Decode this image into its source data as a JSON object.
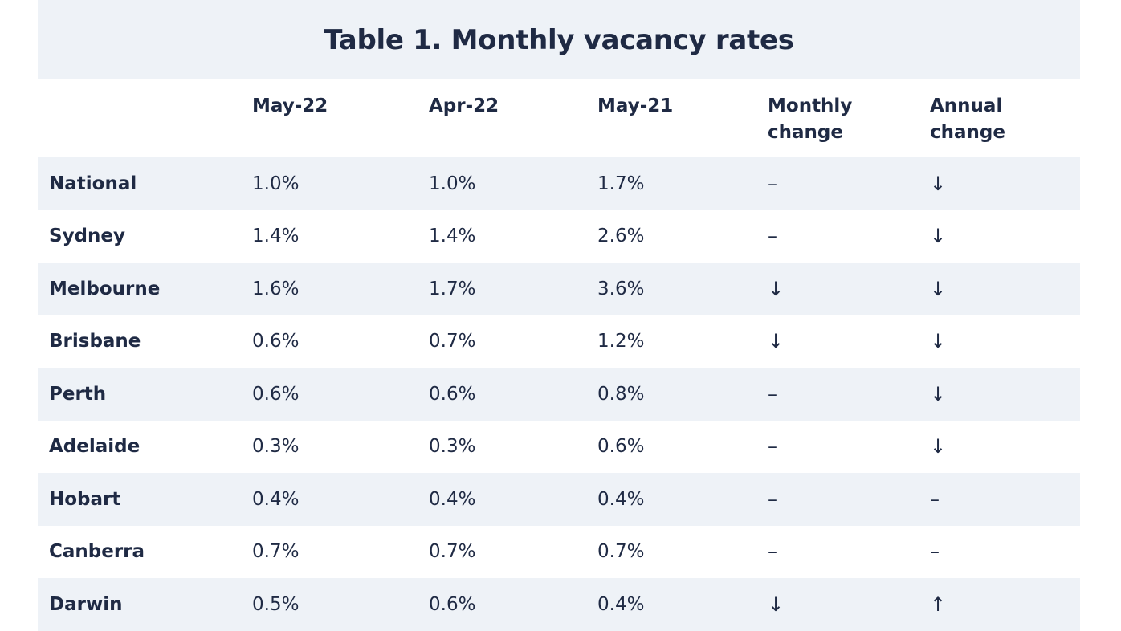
{
  "title": "Table 1. Monthly vacancy rates",
  "columns": [
    "",
    "May-22",
    "Apr-22",
    "May-21",
    "Monthly change",
    "Annual change"
  ],
  "rows": [
    [
      "National",
      "1.0%",
      "1.0%",
      "1.7%",
      "–",
      "↓"
    ],
    [
      "Sydney",
      "1.4%",
      "1.4%",
      "2.6%",
      "–",
      "↓"
    ],
    [
      "Melbourne",
      "1.6%",
      "1.7%",
      "3.6%",
      "↓",
      "↓"
    ],
    [
      "Brisbane",
      "0.6%",
      "0.7%",
      "1.2%",
      "↓",
      "↓"
    ],
    [
      "Perth",
      "0.6%",
      "0.6%",
      "0.8%",
      "–",
      "↓"
    ],
    [
      "Adelaide",
      "0.3%",
      "0.3%",
      "0.6%",
      "–",
      "↓"
    ],
    [
      "Hobart",
      "0.4%",
      "0.4%",
      "0.4%",
      "–",
      "–"
    ],
    [
      "Canberra",
      "0.7%",
      "0.7%",
      "0.7%",
      "–",
      "–"
    ],
    [
      "Darwin",
      "0.5%",
      "0.6%",
      "0.4%",
      "↓",
      "↑"
    ]
  ],
  "colors": {
    "text": "#1f2a44",
    "band": "#eef2f7",
    "background": "#ffffff"
  }
}
